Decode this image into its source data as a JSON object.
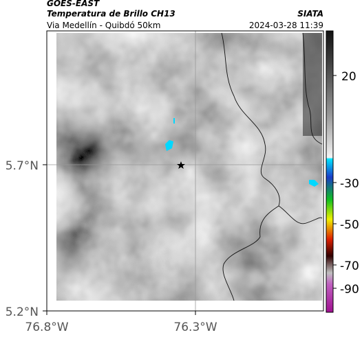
{
  "header": {
    "source": "GOES-EAST",
    "product": "Temperatura de Brillo CH13",
    "route": "Via Medellín - Quibdó 50km",
    "org": "SIATA",
    "timestamp": "2024-03-28 11:39"
  },
  "map": {
    "lat_labels": [
      "5.7°N",
      "5.2°N"
    ],
    "lon_labels": [
      "76.8°W",
      "76.3°W"
    ]
  },
  "colorbar": {
    "labels": [
      "20",
      "-30",
      "-50",
      "-70",
      "-90"
    ]
  }
}
